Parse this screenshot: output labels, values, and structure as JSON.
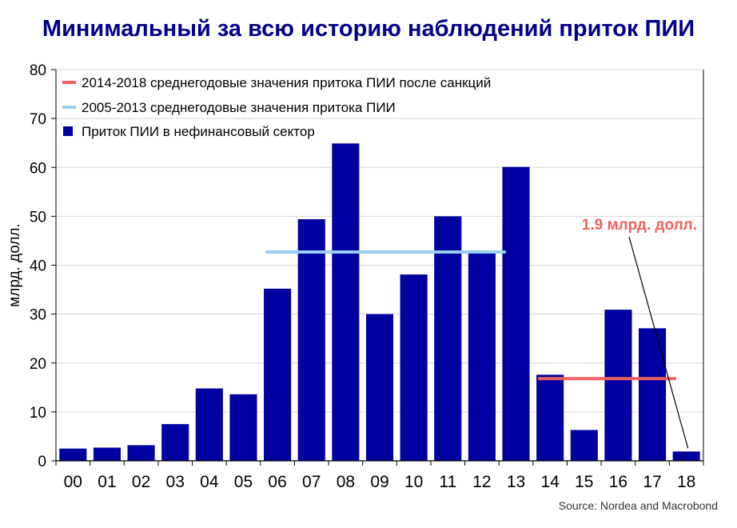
{
  "chart_data": {
    "type": "bar",
    "title": "Минимальный за всю историю наблюдений приток ПИИ",
    "ylabel": "млрд. долл.",
    "xlabel": "",
    "categories": [
      "00",
      "01",
      "02",
      "03",
      "04",
      "05",
      "06",
      "07",
      "08",
      "09",
      "10",
      "11",
      "12",
      "13",
      "14",
      "15",
      "16",
      "17",
      "18"
    ],
    "series": [
      {
        "name": "Приток ПИИ в нефинансовый сектор",
        "color": "#0000a0",
        "values": [
          2.5,
          2.7,
          3.2,
          7.5,
          14.8,
          13.6,
          35.2,
          49.4,
          64.9,
          30.0,
          38.1,
          50.0,
          42.5,
          60.1,
          17.6,
          6.3,
          30.9,
          27.1,
          1.9
        ]
      }
    ],
    "reference_lines": [
      {
        "name": "2014-2018 среднегодовые значения притока ПИИ после санкций",
        "color": "#f0605e",
        "value": 16.8,
        "from": "14",
        "to": "18"
      },
      {
        "name": "2005-2013 среднегодовые значения притока ПИИ",
        "color": "#99ccf0",
        "value": 42.7,
        "from": "06",
        "to": "13"
      }
    ],
    "ylim": [
      0,
      80
    ],
    "yticks": [
      0,
      10,
      20,
      30,
      40,
      50,
      60,
      70,
      80
    ],
    "grid": true,
    "legend_position": "top-left",
    "annotation": {
      "text": "1.9 млрд. долл.",
      "color": "#f0605e",
      "points_to": "18"
    }
  },
  "source": "Source: Nordea and Macrobond"
}
